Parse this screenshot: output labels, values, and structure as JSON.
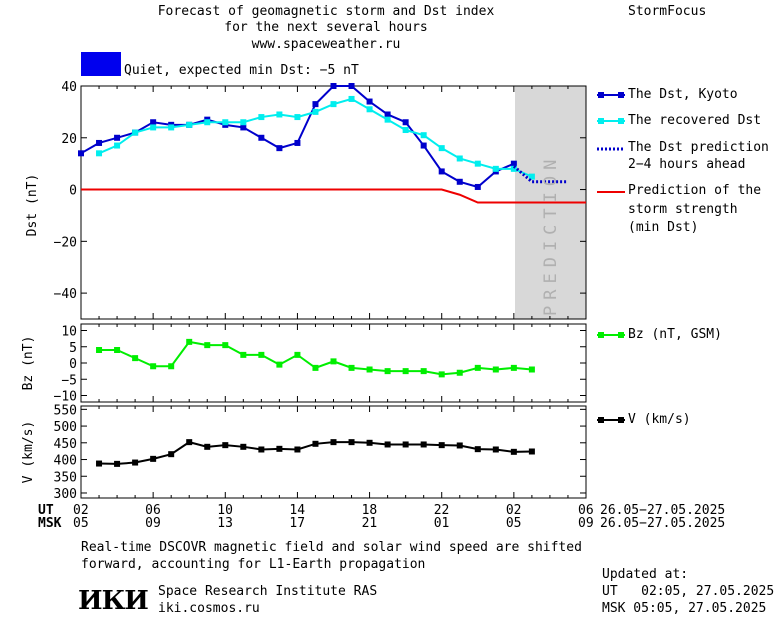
{
  "header": {
    "title_lines": [
      "Forecast of geomagnetic storm and Dst index",
      "for the next several hours",
      "www.spaceweather.ru"
    ],
    "brand": "StormFocus",
    "status_text": "Quiet, expected min Dst: −5 nT",
    "status_color": "#0000ee"
  },
  "legend": {
    "dst_kyoto": "The Dst, Kyoto",
    "dst_recovered": "The recovered Dst",
    "dst_prediction_lines": [
      "The Dst prediction",
      "2−4 hours ahead"
    ],
    "storm_strength_lines": [
      "Prediction of the",
      "storm strength",
      "(min Dst)"
    ],
    "bz": "Bz (nT, GSM)",
    "v": "V (km/s)"
  },
  "x_axis": {
    "ut_label": "UT",
    "msk_label": "MSK",
    "ut_ticks": [
      "02",
      "06",
      "10",
      "14",
      "18",
      "22",
      "02",
      "06"
    ],
    "msk_ticks": [
      "05",
      "09",
      "13",
      "17",
      "21",
      "01",
      "05",
      "09"
    ],
    "ut_range": "26.05−27.05.2025",
    "msk_range": "26.05−27.05.2025"
  },
  "prediction_label": "PREDICTION",
  "footer": {
    "note_lines": [
      "Real-time DSCOVR magnetic field and solar wind speed are shifted",
      "forward, accounting for L1-Earth propagation"
    ],
    "institute_name": "Space Research Institute RAS",
    "institute_site": "iki.cosmos.ru",
    "logo_text": "ИКИ",
    "updated_label": "Updated at:",
    "updated_ut": "UT   02:05, 27.05.2025",
    "updated_msk": "MSK 05:05, 27.05.2025"
  },
  "colors": {
    "kyoto": "#0000cc",
    "recovered": "#00eeee",
    "prediction": "#0000cc",
    "storm": "#ee0000",
    "bz": "#00ee00",
    "v": "#000000",
    "prediction_band": "#d8d8d8"
  },
  "chart_data": [
    {
      "type": "line",
      "ylabel": "Dst (nT)",
      "ylim": [
        -50,
        40
      ],
      "yticks": [
        -40,
        -20,
        0,
        20,
        40
      ],
      "xlim_hours": [
        0,
        28
      ],
      "prediction_start_hour": 24,
      "series": [
        {
          "name": "The Dst, Kyoto",
          "x": [
            0,
            1,
            2,
            3,
            4,
            5,
            6,
            7,
            8,
            9,
            10,
            11,
            12,
            13,
            14,
            15,
            16,
            17,
            18,
            19,
            20,
            21,
            22,
            23,
            24
          ],
          "values": [
            14,
            18,
            20,
            22,
            26,
            25,
            25,
            27,
            25,
            24,
            20,
            16,
            18,
            33,
            40,
            40,
            34,
            29,
            26,
            17,
            7,
            3,
            1,
            7,
            10
          ]
        },
        {
          "name": "The recovered Dst",
          "x": [
            1,
            2,
            3,
            4,
            5,
            6,
            7,
            8,
            9,
            10,
            11,
            12,
            13,
            14,
            15,
            16,
            17,
            18,
            19,
            20,
            21,
            22,
            23,
            24,
            25
          ],
          "values": [
            14,
            17,
            22,
            24,
            24,
            25,
            26,
            26,
            26,
            28,
            29,
            28,
            30,
            33,
            35,
            31,
            27,
            23,
            21,
            16,
            12,
            10,
            8,
            8,
            5
          ]
        },
        {
          "name": "The Dst prediction 2−4 hours ahead",
          "x": [
            24,
            25,
            26,
            27
          ],
          "values": [
            9,
            3,
            3,
            3
          ]
        },
        {
          "name": "Prediction of the storm strength (min Dst)",
          "x": [
            0,
            20,
            21,
            22,
            28
          ],
          "values": [
            0,
            0,
            -2,
            -5,
            -5
          ]
        }
      ]
    },
    {
      "type": "line",
      "ylabel": "Bz (nT)",
      "ylim": [
        -12,
        12
      ],
      "yticks": [
        -10,
        -5,
        0,
        5,
        10
      ],
      "series": [
        {
          "name": "Bz (nT, GSM)",
          "x": [
            1,
            2,
            3,
            4,
            5,
            6,
            7,
            8,
            9,
            10,
            11,
            12,
            13,
            14,
            15,
            16,
            17,
            18,
            19,
            20,
            21,
            22,
            23,
            24,
            25
          ],
          "values": [
            4,
            4,
            1.5,
            -1,
            -1,
            6.5,
            5.5,
            5.5,
            2.5,
            2.5,
            -0.5,
            2.5,
            -1.5,
            0.5,
            -1.5,
            -2,
            -2.5,
            -2.5,
            -2.5,
            -3.5,
            -3,
            -1.5,
            -2,
            -1.5,
            -2
          ]
        }
      ]
    },
    {
      "type": "line",
      "ylabel": "V (km/s)",
      "ylim": [
        285,
        560
      ],
      "yticks": [
        300,
        350,
        400,
        450,
        500,
        550
      ],
      "series": [
        {
          "name": "V (km/s)",
          "x": [
            1,
            2,
            3,
            4,
            5,
            6,
            7,
            8,
            9,
            10,
            11,
            12,
            13,
            14,
            15,
            16,
            17,
            18,
            19,
            20,
            21,
            22,
            23,
            24,
            25
          ],
          "values": [
            388,
            387,
            391,
            402,
            416,
            452,
            438,
            443,
            438,
            430,
            432,
            430,
            447,
            452,
            452,
            450,
            445,
            445,
            445,
            443,
            442,
            431,
            430,
            423,
            424
          ]
        }
      ]
    }
  ]
}
